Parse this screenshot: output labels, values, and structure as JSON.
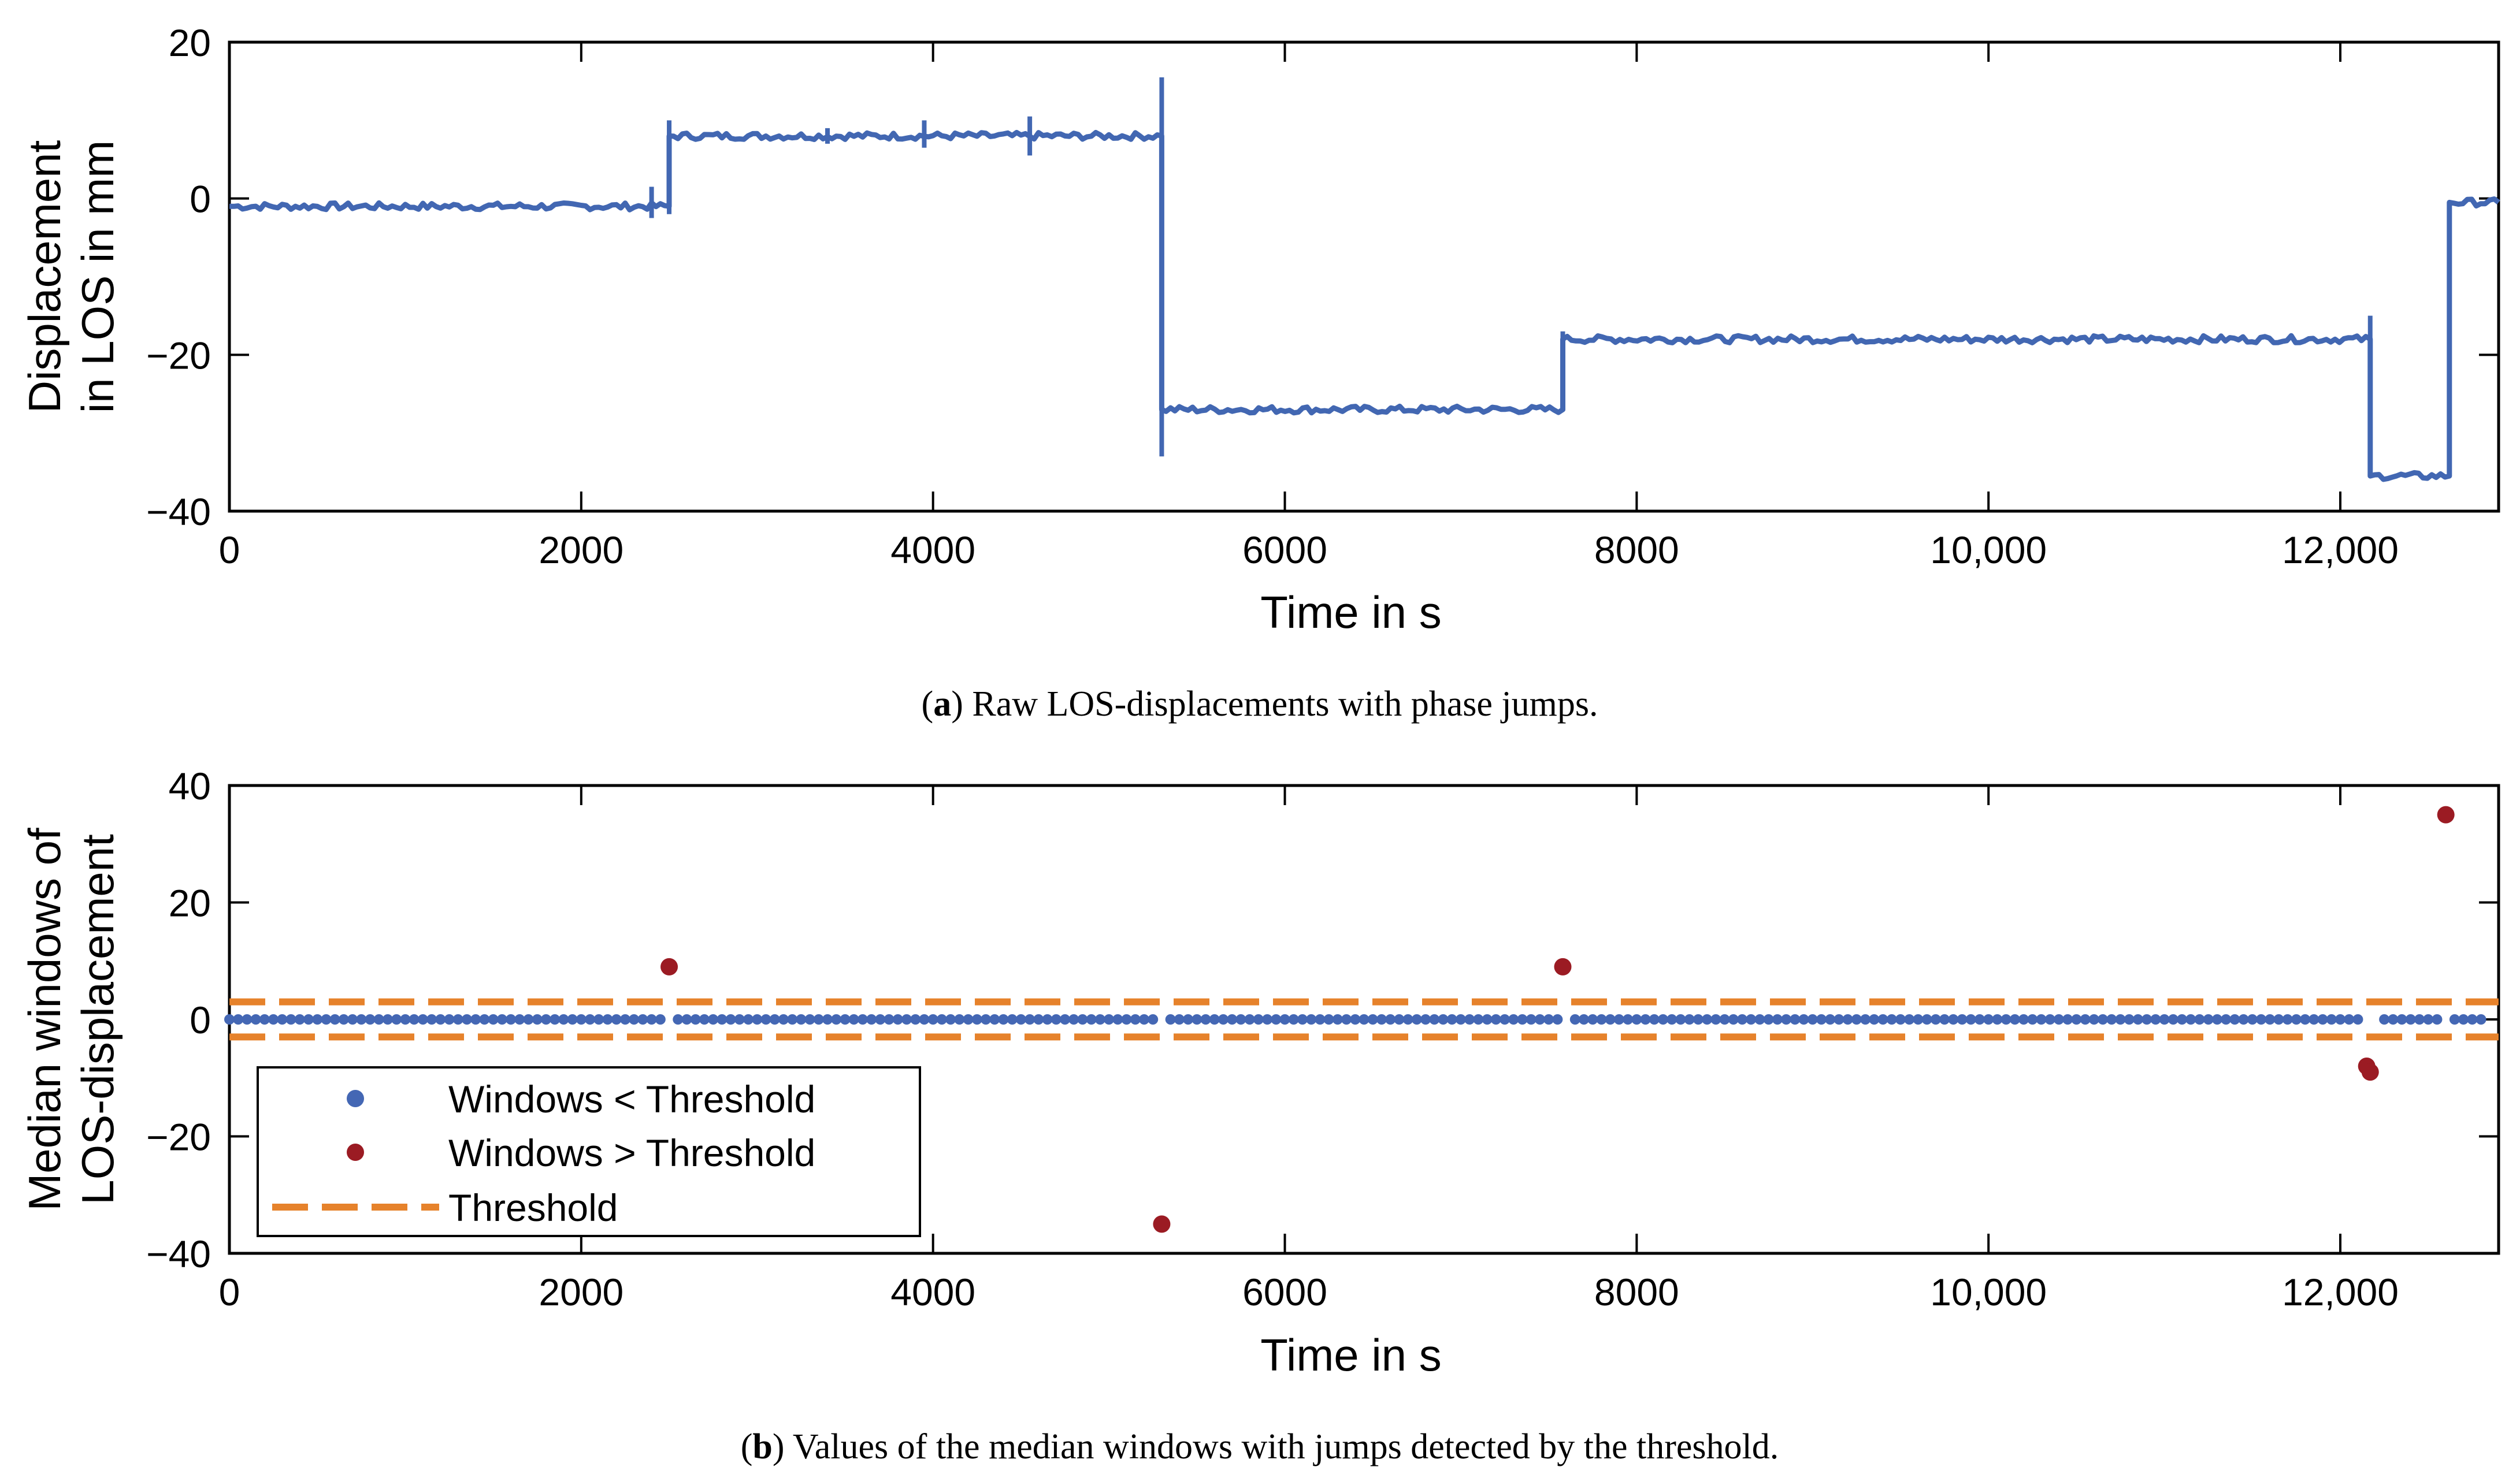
{
  "colors": {
    "series_line": "#4267b2",
    "below_threshold": "#4467b4",
    "above_threshold": "#9b1b23",
    "threshold": "#e6822b",
    "axis": "#000000"
  },
  "chart_data": [
    {
      "type": "line",
      "panel_label": "a",
      "caption": "Raw LOS-displacements with phase jumps.",
      "xlabel": "Time in s",
      "ylabel": [
        "Displacement",
        "in LOS in mm"
      ],
      "xlim": [
        0,
        12900
      ],
      "ylim": [
        -40,
        20
      ],
      "xticks": [
        0,
        2000,
        4000,
        6000,
        8000,
        10000,
        12000
      ],
      "xtick_labels": [
        "0",
        "2000",
        "4000",
        "6000",
        "8000",
        "10,000",
        "12,000"
      ],
      "yticks": [
        -40,
        -20,
        0,
        20
      ],
      "ytick_labels": [
        "−40",
        "−20",
        "0",
        "20"
      ],
      "series": [
        {
          "name": "LOS displacement",
          "segments": [
            {
              "x_start": 0,
              "x_end": 2500,
              "value": -1
            },
            {
              "x_start": 2500,
              "x_end": 5300,
              "value": 8
            },
            {
              "x_start": 5300,
              "x_end": 7580,
              "value": -27
            },
            {
              "x_start": 7580,
              "x_end": 12170,
              "value": -18
            },
            {
              "x_start": 12170,
              "x_end": 12620,
              "value": -35.5
            },
            {
              "x_start": 12620,
              "x_end": 12900,
              "value": -0.5
            }
          ],
          "spikes": [
            {
              "x": 2400,
              "min": -2.5,
              "max": 1.5
            },
            {
              "x": 2500,
              "min": -2,
              "max": 10
            },
            {
              "x": 3400,
              "min": 7,
              "max": 9
            },
            {
              "x": 3950,
              "min": 6.5,
              "max": 10
            },
            {
              "x": 4550,
              "min": 5.5,
              "max": 10.5
            },
            {
              "x": 5300,
              "min": -33,
              "max": 15.5
            },
            {
              "x": 7580,
              "min": -27,
              "max": -17
            },
            {
              "x": 12170,
              "min": -21,
              "max": -15
            },
            {
              "x": 12620,
              "min": -35.5,
              "max": -0.5
            }
          ]
        }
      ]
    },
    {
      "type": "scatter",
      "panel_label": "b",
      "caption": "Values of the median windows with jumps detected by the threshold.",
      "xlabel": "Time in s",
      "ylabel": [
        "Median windows of",
        "LOS-displacement"
      ],
      "xlim": [
        0,
        12900
      ],
      "ylim": [
        -40,
        40
      ],
      "xticks": [
        0,
        2000,
        4000,
        6000,
        8000,
        10000,
        12000
      ],
      "xtick_labels": [
        "0",
        "2000",
        "4000",
        "6000",
        "8000",
        "10,000",
        "12,000"
      ],
      "yticks": [
        -40,
        -20,
        0,
        20,
        40
      ],
      "ytick_labels": [
        "−40",
        "−20",
        "0",
        "20",
        "40"
      ],
      "legend": {
        "location": "lower-left",
        "entries": [
          "Windows < Threshold",
          "Windows > Threshold",
          "Threshold"
        ]
      },
      "series": [
        {
          "name": "Windows < Threshold",
          "value": 0,
          "x_start": 0,
          "x_step": 50,
          "x_end": 12800,
          "skip_x": [
            2500,
            5300,
            7580,
            12150,
            12200,
            12600
          ]
        },
        {
          "name": "Windows > Threshold",
          "points": [
            {
              "x": 2500,
              "y": 9
            },
            {
              "x": 5300,
              "y": -35
            },
            {
              "x": 7580,
              "y": 9
            },
            {
              "x": 12150,
              "y": -8
            },
            {
              "x": 12170,
              "y": -9
            },
            {
              "x": 12600,
              "y": 35
            }
          ]
        },
        {
          "name": "Threshold",
          "values": [
            3,
            -3
          ]
        }
      ]
    }
  ]
}
